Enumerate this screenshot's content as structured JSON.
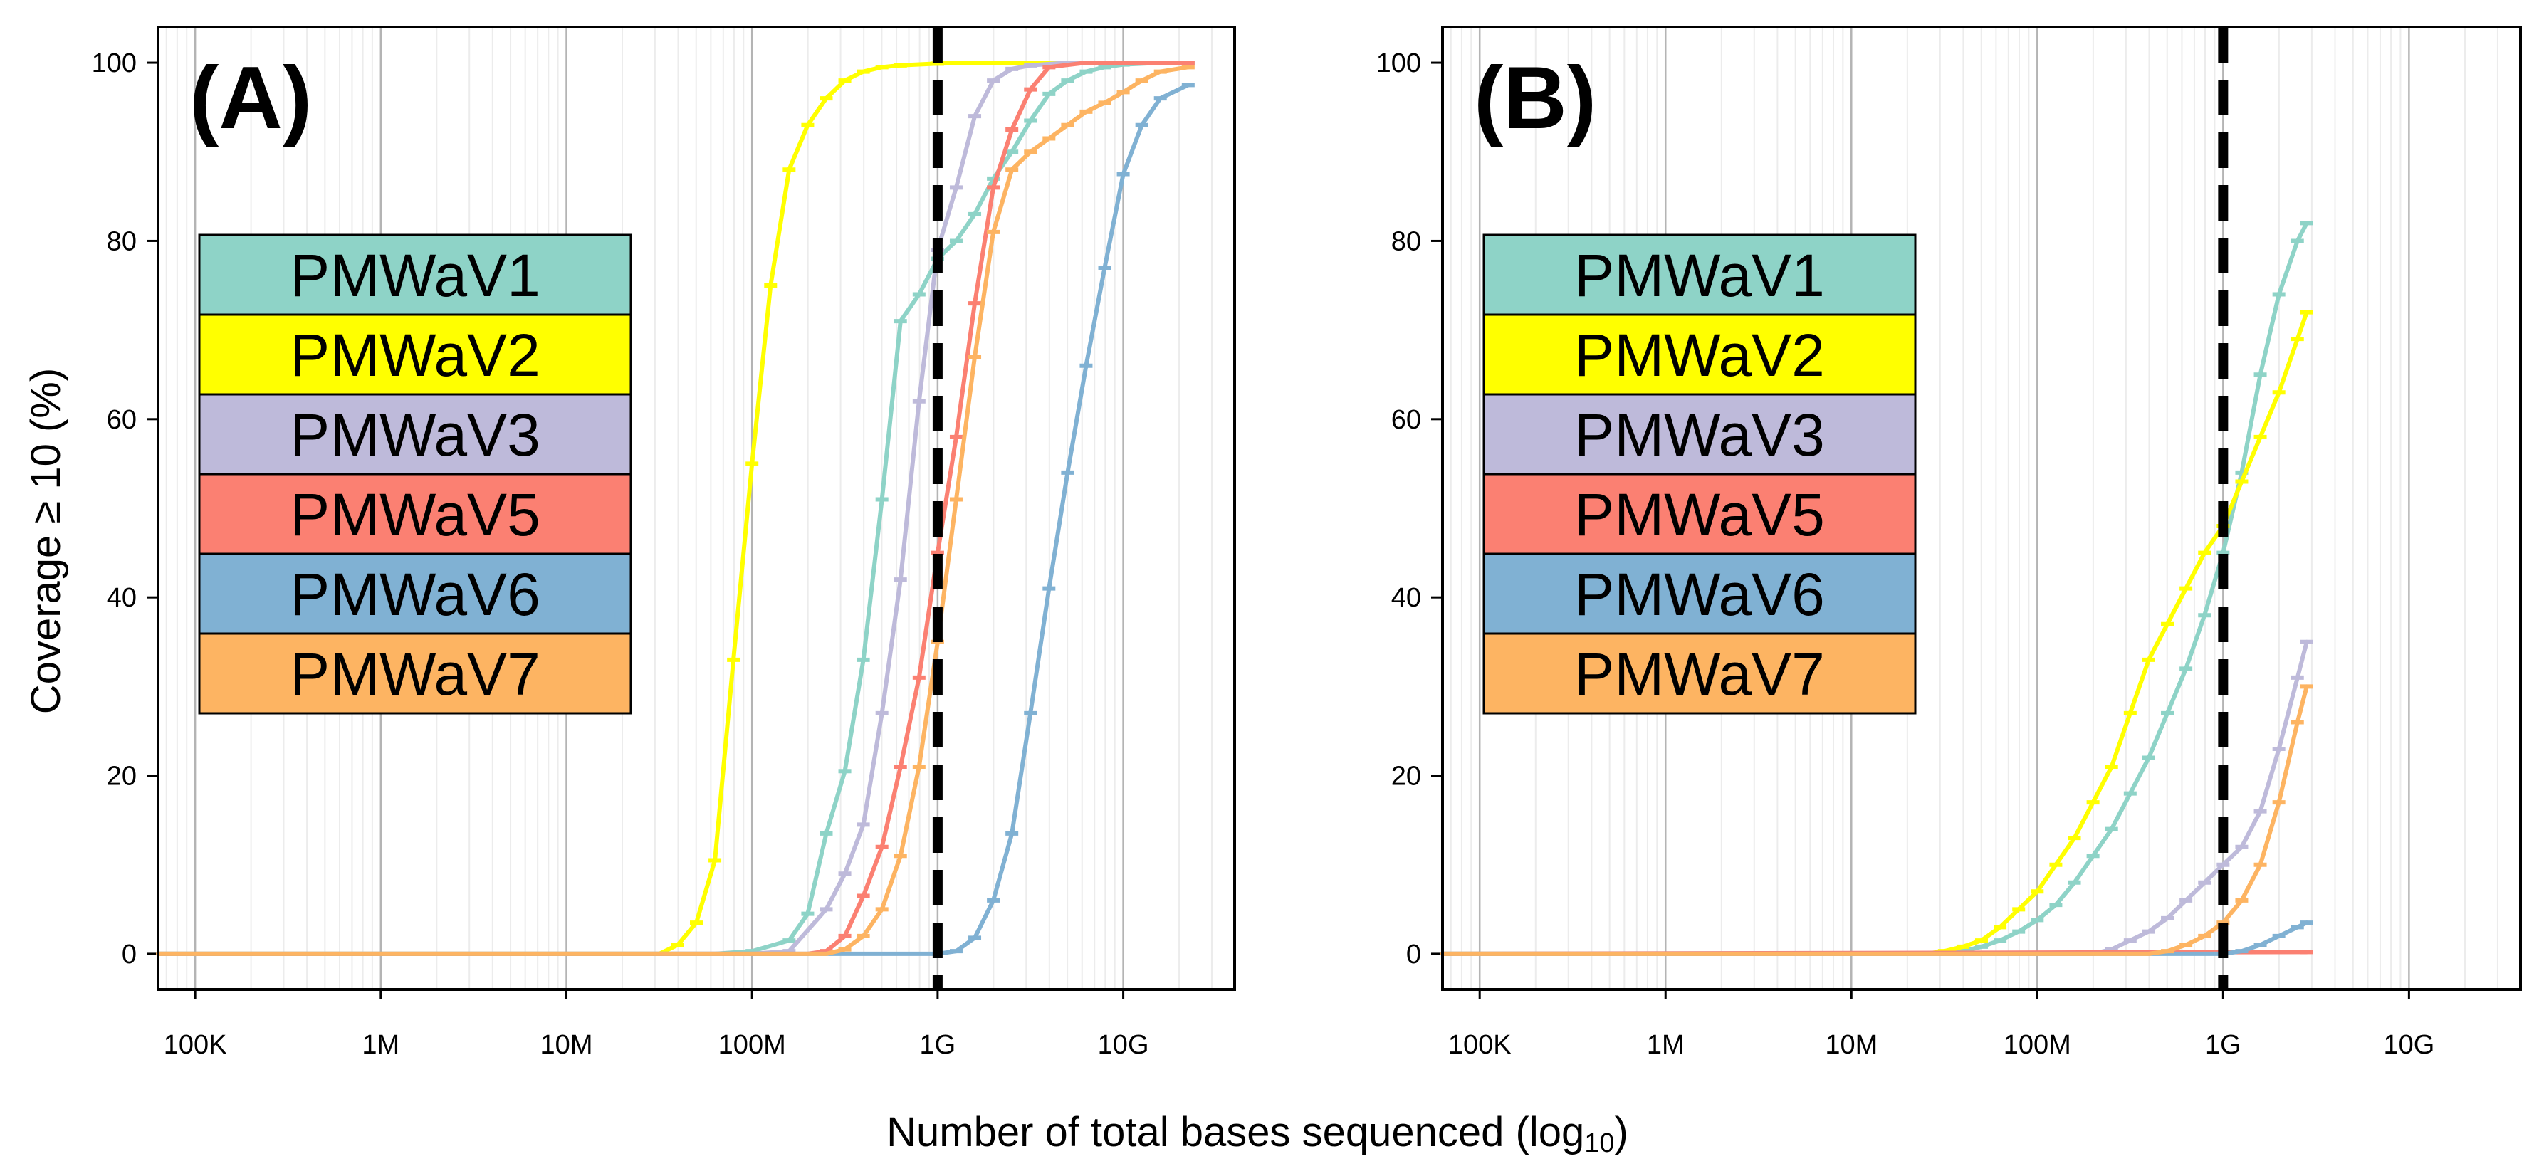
{
  "xlabel_main": "Number of total bases sequenced (log",
  "xlabel_sub": "10",
  "xlabel_close": ")",
  "ylabel": "Coverage ≥ 10 (%)",
  "chart_data": [
    {
      "type": "line",
      "panel": "(A)",
      "xscale": "log10",
      "xlim_log10": [
        4.8,
        10.6
      ],
      "ylim": [
        -4,
        104
      ],
      "x_ticks": [
        {
          "value": 5,
          "label": "100K"
        },
        {
          "value": 6,
          "label": "1M"
        },
        {
          "value": 7,
          "label": "10M"
        },
        {
          "value": 8,
          "label": "100M"
        },
        {
          "value": 9,
          "label": "1G"
        },
        {
          "value": 10,
          "label": "10G"
        }
      ],
      "y_ticks": [
        0,
        20,
        40,
        60,
        80,
        100
      ],
      "reference_line_x_log10": 9,
      "legend": [
        "PMWaV1",
        "PMWaV2",
        "PMWaV3",
        "PMWaV5",
        "PMWaV6",
        "PMWaV7"
      ],
      "series": [
        {
          "name": "PMWaV1",
          "color": "#8ED3C7",
          "x_log10": [
            4.8,
            7.8,
            8.0,
            8.2,
            8.3,
            8.4,
            8.5,
            8.6,
            8.7,
            8.8,
            8.9,
            9.0,
            9.1,
            9.2,
            9.3,
            9.4,
            9.5,
            9.6,
            9.7,
            9.8,
            9.9,
            10.0,
            10.2,
            10.35
          ],
          "y": [
            0,
            0,
            0.3,
            1.5,
            4.5,
            13.5,
            20.5,
            33,
            51,
            71,
            74,
            78,
            80,
            83,
            87,
            90,
            93.5,
            96.5,
            98,
            99,
            99.5,
            99.8,
            100,
            100
          ]
        },
        {
          "name": "PMWaV2",
          "color": "#FFFF00",
          "x_log10": [
            4.8,
            7.5,
            7.6,
            7.7,
            7.8,
            7.9,
            8.0,
            8.1,
            8.2,
            8.3,
            8.4,
            8.5,
            8.6,
            8.7,
            8.8,
            9.0,
            9.2,
            9.5,
            10.0,
            10.35
          ],
          "y": [
            0,
            0,
            1,
            3.5,
            10.5,
            33,
            55,
            75,
            88,
            93,
            96,
            98,
            99,
            99.5,
            99.7,
            99.9,
            100,
            100,
            100,
            100
          ]
        },
        {
          "name": "PMWaV3",
          "color": "#BEBADA",
          "x_log10": [
            4.8,
            8.0,
            8.2,
            8.4,
            8.5,
            8.6,
            8.7,
            8.8,
            8.9,
            9.0,
            9.1,
            9.2,
            9.3,
            9.4,
            9.5,
            9.7,
            10.0,
            10.35
          ],
          "y": [
            0,
            0,
            0.3,
            5,
            9,
            14.5,
            27,
            42,
            62,
            79,
            86,
            94,
            98,
            99.3,
            99.7,
            100,
            100,
            100
          ]
        },
        {
          "name": "PMWaV5",
          "color": "#FB8072",
          "x_log10": [
            4.8,
            8.3,
            8.4,
            8.5,
            8.6,
            8.7,
            8.8,
            8.9,
            9.0,
            9.1,
            9.2,
            9.3,
            9.4,
            9.5,
            9.6,
            9.8,
            10.0,
            10.35
          ],
          "y": [
            0,
            0,
            0.3,
            2,
            6.5,
            12,
            21,
            31,
            45,
            58,
            73,
            86,
            92.5,
            97,
            99.5,
            100,
            100,
            100
          ]
        },
        {
          "name": "PMWaV6",
          "color": "#80B1D3",
          "x_log10": [
            4.8,
            9.0,
            9.1,
            9.2,
            9.3,
            9.4,
            9.5,
            9.6,
            9.7,
            9.8,
            9.9,
            10.0,
            10.1,
            10.2,
            10.35
          ],
          "y": [
            0,
            0,
            0.3,
            1.8,
            6,
            13.5,
            27,
            41,
            54,
            66,
            77,
            87.5,
            93,
            96,
            97.5
          ]
        },
        {
          "name": "PMWaV7",
          "color": "#FDB462",
          "x_log10": [
            4.8,
            8.4,
            8.5,
            8.6,
            8.7,
            8.8,
            8.9,
            9.0,
            9.1,
            9.2,
            9.3,
            9.4,
            9.5,
            9.6,
            9.7,
            9.8,
            9.9,
            10.0,
            10.1,
            10.2,
            10.35
          ],
          "y": [
            0,
            0,
            0.5,
            2,
            5,
            11,
            21,
            35,
            51,
            67,
            81,
            88,
            90,
            91.5,
            93,
            94.5,
            95.5,
            96.7,
            98,
            99,
            99.5
          ]
        }
      ]
    },
    {
      "type": "line",
      "panel": "(B)",
      "xscale": "log10",
      "xlim_log10": [
        4.8,
        10.6
      ],
      "ylim": [
        -4,
        104
      ],
      "x_ticks": [
        {
          "value": 5,
          "label": "100K"
        },
        {
          "value": 6,
          "label": "1M"
        },
        {
          "value": 7,
          "label": "10M"
        },
        {
          "value": 8,
          "label": "100M"
        },
        {
          "value": 9,
          "label": "1G"
        },
        {
          "value": 10,
          "label": "10G"
        }
      ],
      "y_ticks": [
        0,
        20,
        40,
        60,
        80,
        100
      ],
      "reference_line_x_log10": 9,
      "legend": [
        "PMWaV1",
        "PMWaV2",
        "PMWaV3",
        "PMWaV5",
        "PMWaV6",
        "PMWaV7"
      ],
      "series": [
        {
          "name": "PMWaV1",
          "color": "#8ED3C7",
          "x_log10": [
            4.8,
            7.5,
            7.6,
            7.7,
            7.8,
            7.9,
            8.0,
            8.1,
            8.2,
            8.3,
            8.4,
            8.5,
            8.6,
            8.7,
            8.8,
            8.9,
            9.0,
            9.1,
            9.2,
            9.3,
            9.4,
            9.45
          ],
          "y": [
            0,
            0,
            0.3,
            0.8,
            1.5,
            2.5,
            3.8,
            5.5,
            8,
            11,
            14,
            18,
            22,
            27,
            32,
            38,
            45,
            54,
            65,
            74,
            80,
            82
          ]
        },
        {
          "name": "PMWaV2",
          "color": "#FFFF00",
          "x_log10": [
            4.8,
            7.4,
            7.5,
            7.6,
            7.7,
            7.8,
            7.9,
            8.0,
            8.1,
            8.2,
            8.3,
            8.4,
            8.5,
            8.6,
            8.7,
            8.8,
            8.9,
            9.0,
            9.1,
            9.2,
            9.3,
            9.4,
            9.45
          ],
          "y": [
            0,
            0,
            0.3,
            0.8,
            1.5,
            3,
            5,
            7,
            10,
            13,
            17,
            21,
            27,
            33,
            37,
            41,
            45,
            48,
            53,
            58,
            63,
            69,
            72
          ]
        },
        {
          "name": "PMWaV3",
          "color": "#BEBADA",
          "x_log10": [
            4.8,
            8.3,
            8.4,
            8.5,
            8.6,
            8.7,
            8.8,
            8.9,
            9.0,
            9.1,
            9.2,
            9.3,
            9.4,
            9.45
          ],
          "y": [
            0,
            0,
            0.5,
            1.5,
            2.5,
            4,
            6,
            8,
            10,
            12,
            16,
            23,
            31,
            35
          ]
        },
        {
          "name": "PMWaV5",
          "color": "#FB8072",
          "x_log10": [
            4.8,
            9.45
          ],
          "y": [
            0,
            0.2
          ]
        },
        {
          "name": "PMWaV6",
          "color": "#80B1D3",
          "x_log10": [
            4.8,
            9.0,
            9.1,
            9.2,
            9.3,
            9.4,
            9.45
          ],
          "y": [
            0,
            0,
            0.3,
            1.0,
            2.0,
            3.0,
            3.5
          ]
        },
        {
          "name": "PMWaV7",
          "color": "#FDB462",
          "x_log10": [
            4.8,
            8.6,
            8.7,
            8.8,
            8.9,
            9.0,
            9.1,
            9.2,
            9.3,
            9.4,
            9.45
          ],
          "y": [
            0,
            0,
            0.3,
            1,
            2,
            3.5,
            6,
            10,
            17,
            26,
            30
          ]
        }
      ]
    }
  ]
}
